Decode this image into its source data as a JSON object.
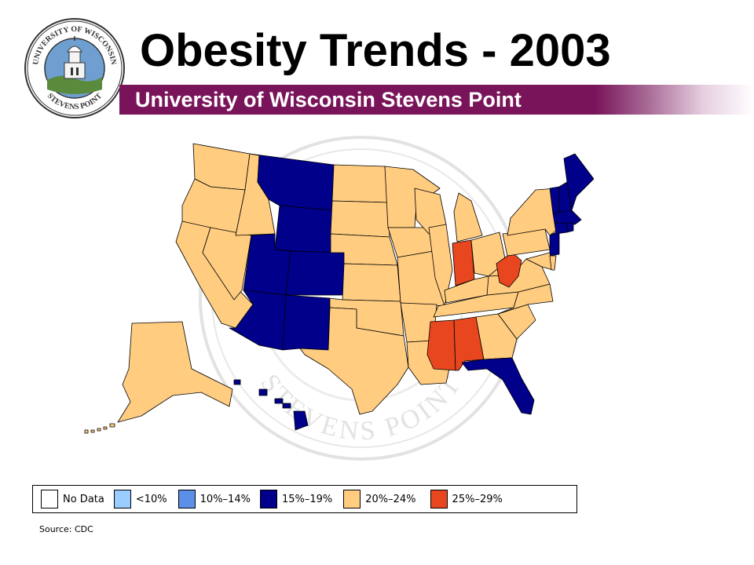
{
  "header": {
    "title": "Obesity Trends - 2003",
    "subtitle": "University of Wisconsin Stevens Point",
    "banner_color": "#7a145a"
  },
  "seal": {
    "top_text": "UNIVERSITY OF WISCONSIN",
    "bottom_text": "STEVENS POINT"
  },
  "watermark": {
    "text": "STEVENS POINT"
  },
  "legend": {
    "items": [
      {
        "label": "No Data",
        "color": "#ffffff"
      },
      {
        "label": "<10%",
        "color": "#99ccff"
      },
      {
        "label": "10%–14%",
        "color": "#5b8fe8"
      },
      {
        "label": "15%–19%",
        "color": "#00008b"
      },
      {
        "label": "20%–24%",
        "color": "#ffcc80"
      },
      {
        "label": "25%–29%",
        "color": "#e8461e"
      }
    ]
  },
  "map": {
    "state_categories": {
      "15-19": [
        "MT",
        "WY",
        "UT",
        "CO",
        "AZ",
        "NM",
        "FL",
        "ME",
        "NH",
        "VT",
        "MA",
        "CT",
        "RI",
        "NJ",
        "HI"
      ],
      "25-29": [
        "IN",
        "WV",
        "MS",
        "AL"
      ],
      "20-24": [
        "WA",
        "OR",
        "CA",
        "NV",
        "ID",
        "ND",
        "SD",
        "NE",
        "KS",
        "OK",
        "TX",
        "MN",
        "IA",
        "MO",
        "AR",
        "LA",
        "WI",
        "IL",
        "MI",
        "OH",
        "KY",
        "TN",
        "GA",
        "SC",
        "NC",
        "VA",
        "MD",
        "DE",
        "PA",
        "NY",
        "AK"
      ]
    }
  },
  "source": "Source: CDC"
}
